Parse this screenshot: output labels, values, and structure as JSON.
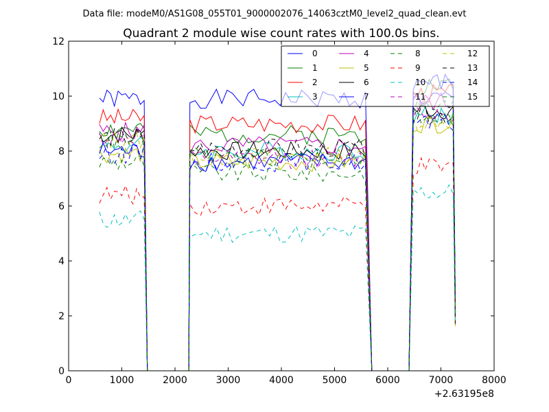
{
  "chart_data": {
    "type": "line",
    "suptitle": "Data file: modeM0/AS1G08_055T01_9000002076_14063cztM0_level2_quad_clean.evt",
    "title": "Quadrant 2 module wise count rates with 100.0s bins.",
    "xlabel": "",
    "ylabel": "",
    "x_offset_label": "+2.63195e8",
    "xlim": [
      0,
      8000
    ],
    "ylim": [
      0,
      12
    ],
    "x_ticks": [
      0,
      1000,
      2000,
      3000,
      4000,
      5000,
      6000,
      7000,
      8000
    ],
    "y_ticks": [
      0,
      2,
      4,
      6,
      8,
      10,
      12
    ],
    "x_tick_labels": [
      "0",
      "1000",
      "2000",
      "3000",
      "4000",
      "5000",
      "6000",
      "7000",
      "8000"
    ],
    "y_tick_labels": [
      "0",
      "2",
      "4",
      "6",
      "8",
      "10",
      "12"
    ],
    "legend_position": "top-right",
    "segments": [
      {
        "start": 580,
        "end": 1420,
        "step": 70
      },
      {
        "start": 2280,
        "end": 5620,
        "step": 100
      },
      {
        "start": 6480,
        "end": 7240,
        "step": 75
      }
    ],
    "series": [
      {
        "name": "0",
        "color": "#0000ff",
        "style": "solid",
        "levels": [
          9.9,
          9.9,
          9.9
        ]
      },
      {
        "name": "1",
        "color": "#008000",
        "style": "solid",
        "levels": [
          8.8,
          8.6,
          10.4
        ]
      },
      {
        "name": "2",
        "color": "#ff0000",
        "style": "solid",
        "levels": [
          9.2,
          9.0,
          10.1
        ]
      },
      {
        "name": "3",
        "color": "#00bfbf",
        "style": "solid",
        "levels": [
          8.2,
          8.0,
          9.3
        ]
      },
      {
        "name": "4",
        "color": "#bf00bf",
        "style": "solid",
        "levels": [
          8.7,
          8.2,
          9.8
        ]
      },
      {
        "name": "5",
        "color": "#bfbf00",
        "style": "solid",
        "levels": [
          7.9,
          7.6,
          9.0
        ]
      },
      {
        "name": "6",
        "color": "#000000",
        "style": "solid",
        "levels": [
          8.6,
          8.0,
          9.5
        ]
      },
      {
        "name": "7",
        "color": "#0000ff",
        "style": "solid",
        "levels": [
          8.0,
          7.6,
          10.5
        ]
      },
      {
        "name": "8",
        "color": "#008000",
        "style": "dashed",
        "levels": [
          7.6,
          7.2,
          9.2
        ]
      },
      {
        "name": "9",
        "color": "#ff0000",
        "style": "dashed",
        "levels": [
          6.4,
          6.0,
          7.4
        ]
      },
      {
        "name": "10",
        "color": "#00bfbf",
        "style": "dashed",
        "levels": [
          5.5,
          5.0,
          6.5
        ]
      },
      {
        "name": "11",
        "color": "#bf00bf",
        "style": "dashed",
        "levels": [
          8.5,
          7.7,
          9.4
        ]
      },
      {
        "name": "12",
        "color": "#bfbf00",
        "style": "dashed",
        "levels": [
          8.4,
          7.8,
          9.1
        ]
      },
      {
        "name": "13",
        "color": "#000000",
        "style": "dashed",
        "levels": [
          8.5,
          8.1,
          9.3
        ]
      },
      {
        "name": "14",
        "color": "#0000ff",
        "style": "dashed",
        "levels": [
          7.9,
          7.6,
          9.0
        ]
      },
      {
        "name": "15",
        "color": "#008000",
        "style": "dashed",
        "levels": [
          8.4,
          7.8,
          9.6
        ]
      }
    ]
  }
}
